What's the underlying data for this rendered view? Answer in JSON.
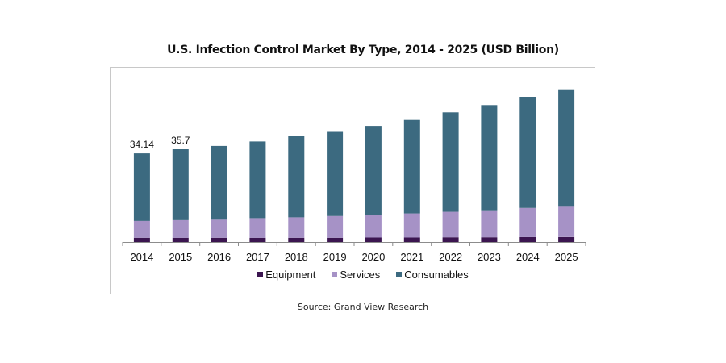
{
  "chart_data": {
    "type": "bar",
    "stacked": true,
    "title": "U.S. Infection Control Market By Type, 2014 - 2025 (USD Billion)",
    "xlabel": "",
    "ylabel": "",
    "categories": [
      "2014",
      "2015",
      "2016",
      "2017",
      "2018",
      "2019",
      "2020",
      "2021",
      "2022",
      "2023",
      "2024",
      "2025"
    ],
    "series": [
      {
        "name": "Equipment",
        "color": "#3b1550",
        "values": [
          1.6,
          1.6,
          1.6,
          1.6,
          1.6,
          1.6,
          1.7,
          1.7,
          1.8,
          1.8,
          1.9,
          1.9
        ]
      },
      {
        "name": "Services",
        "color": "#a692c6",
        "values": [
          6.5,
          6.8,
          7.0,
          7.6,
          7.9,
          8.4,
          8.7,
          9.3,
          9.8,
          10.4,
          11.2,
          12.0
        ]
      },
      {
        "name": "Consumables",
        "color": "#3c6a80",
        "values": [
          26.04,
          27.3,
          28.4,
          29.5,
          31.3,
          32.4,
          34.3,
          36.0,
          38.3,
          40.5,
          42.8,
          44.9
        ]
      }
    ],
    "data_labels": [
      {
        "category": "2014",
        "text": "34.14"
      },
      {
        "category": "2015",
        "text": "35.7"
      }
    ],
    "ylim": [
      0,
      60
    ],
    "grid": false,
    "legend": "bottom"
  },
  "source": "Source: Grand View Research"
}
